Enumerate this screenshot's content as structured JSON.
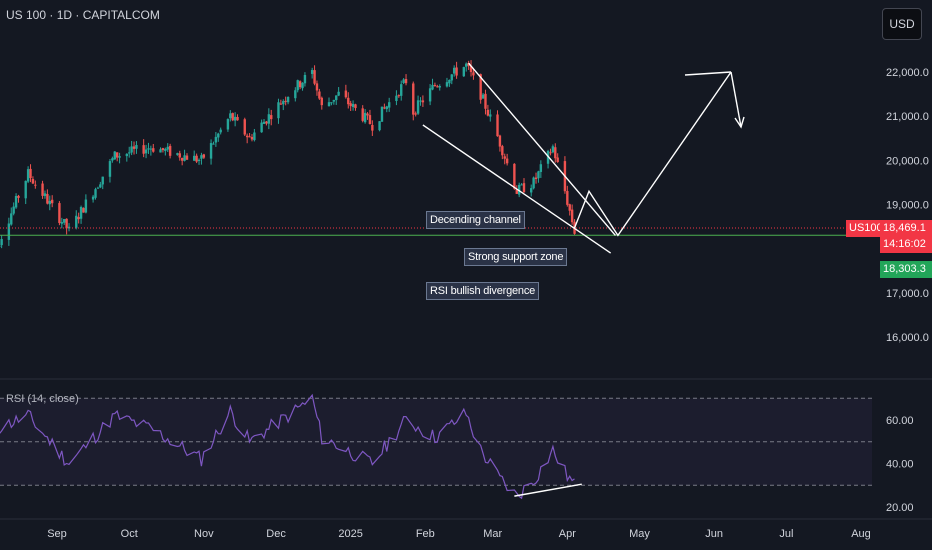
{
  "header": {
    "title": "US 100 · 1D · CAPITALCOM"
  },
  "currency_button": {
    "label": "USD"
  },
  "rsi": {
    "title": "RSI (14, close)"
  },
  "annotations": {
    "channel": "Decending channel",
    "support": "Strong support zone",
    "divergence": "RSI bullish divergence"
  },
  "price_tags": {
    "symbol": "US100",
    "last_price": "18,469.1",
    "countdown": "14:16:02",
    "support_price": "18,303.3"
  },
  "colors": {
    "up": "#26a69a",
    "down": "#ef5350",
    "support_line": "#4caf50",
    "rsi_line": "#7e57c2",
    "drawings": "#ffffff",
    "background": "#141822"
  },
  "chart_data": [
    {
      "type": "candlestick",
      "title": "US 100 · 1D · CAPITALCOM",
      "x_ticks": [
        "Sep",
        "Oct",
        "Nov",
        "Dec",
        "2025",
        "Feb",
        "Mar",
        "Apr",
        "May",
        "Jun",
        "Jul",
        "Aug"
      ],
      "y_ticks": [
        "22,000.0",
        "21,000.0",
        "20,000.0",
        "19,000.0",
        "17,000.0",
        "16,000.0"
      ],
      "ylim": [
        15500,
        23000
      ],
      "support_level": 18303.3,
      "last_price": 18469.1,
      "trend_waypoints": [
        [
          "2024-08-05",
          17800
        ],
        [
          "2024-08-20",
          19700
        ],
        [
          "2024-09-06",
          18400
        ],
        [
          "2024-09-25",
          20100
        ],
        [
          "2024-10-10",
          20300
        ],
        [
          "2024-10-31",
          20000
        ],
        [
          "2024-11-12",
          21000
        ],
        [
          "2024-11-20",
          20500
        ],
        [
          "2024-12-06",
          21500
        ],
        [
          "2024-12-16",
          22000
        ],
        [
          "2024-12-20",
          21200
        ],
        [
          "2024-12-27",
          21500
        ],
        [
          "2025-01-10",
          20800
        ],
        [
          "2025-01-24",
          21800
        ],
        [
          "2025-01-27",
          21100
        ],
        [
          "2025-02-05",
          21700
        ],
        [
          "2025-02-18",
          22150
        ],
        [
          "2025-02-24",
          21500
        ],
        [
          "2025-03-04",
          20400
        ],
        [
          "2025-03-11",
          19300
        ],
        [
          "2025-03-18",
          19500
        ],
        [
          "2025-03-26",
          20300
        ],
        [
          "2025-03-31",
          19300
        ],
        [
          "2025-04-04",
          18400
        ]
      ],
      "projection": [
        [
          "2025-04-04",
          18469
        ],
        [
          "2025-04-10",
          19300
        ],
        [
          "2025-04-22",
          18300
        ],
        [
          "2025-06-08",
          22000
        ]
      ]
    },
    {
      "type": "line",
      "title": "RSI (14, close)",
      "y_ticks": [
        "60.00",
        "40.00",
        "20.00"
      ],
      "ylim": [
        18,
        72
      ],
      "bands": [
        70,
        50,
        30
      ],
      "waypoints": [
        [
          "2024-08-05",
          55
        ],
        [
          "2024-08-20",
          62
        ],
        [
          "2024-09-06",
          40
        ],
        [
          "2024-09-25",
          62
        ],
        [
          "2024-10-10",
          56
        ],
        [
          "2024-10-31",
          42
        ],
        [
          "2024-11-12",
          64
        ],
        [
          "2024-11-20",
          50
        ],
        [
          "2024-12-06",
          62
        ],
        [
          "2024-12-16",
          70
        ],
        [
          "2024-12-20",
          52
        ],
        [
          "2025-01-10",
          40
        ],
        [
          "2025-01-24",
          60
        ],
        [
          "2025-02-05",
          52
        ],
        [
          "2025-02-18",
          63
        ],
        [
          "2025-02-24",
          46
        ],
        [
          "2025-03-04",
          33
        ],
        [
          "2025-03-11",
          25
        ],
        [
          "2025-03-18",
          32
        ],
        [
          "2025-03-26",
          46
        ],
        [
          "2025-03-31",
          36
        ],
        [
          "2025-04-04",
          30
        ]
      ]
    }
  ]
}
